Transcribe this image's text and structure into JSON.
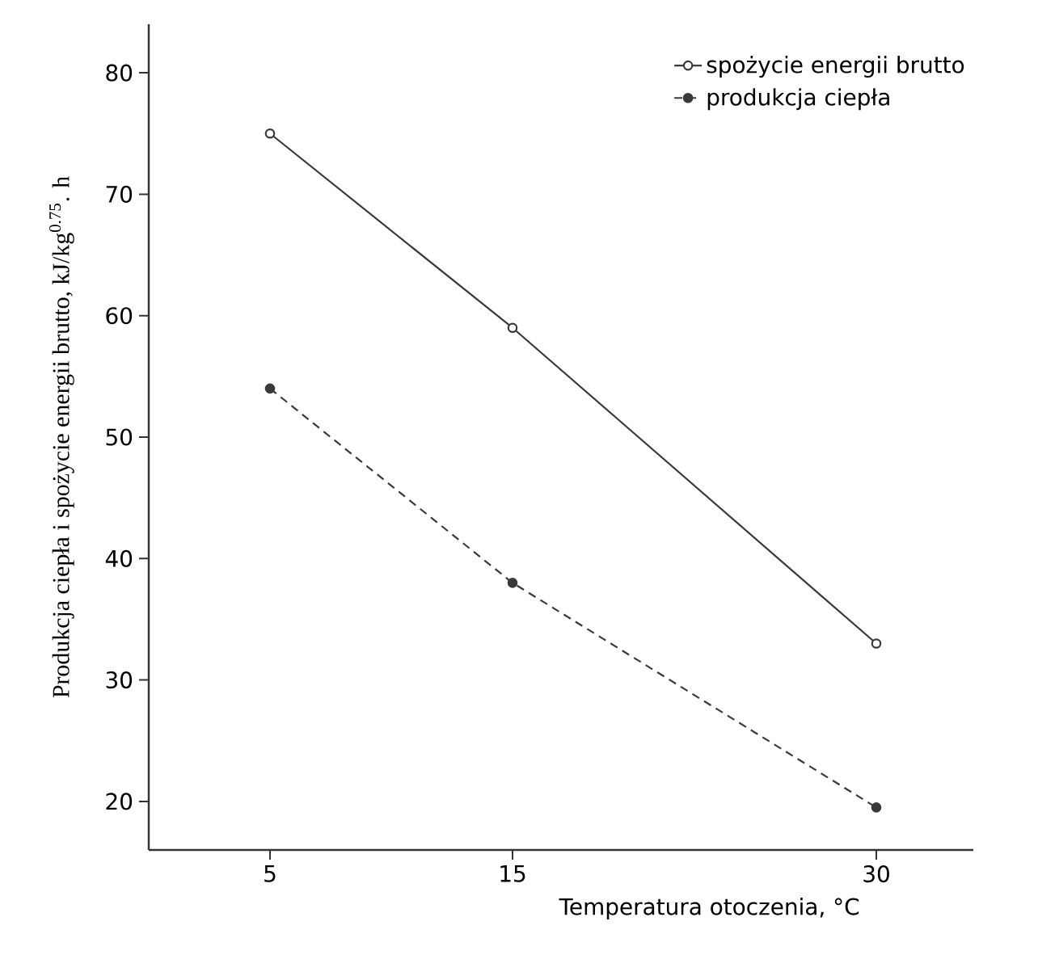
{
  "chart_data": {
    "type": "line",
    "xlabel": "Temperatura otoczenia, °C",
    "ylabel": "Produkcja ciepła i spożycie energii brutto, kJ/kg$^{0.75}$. h",
    "x": [
      5,
      15,
      30
    ],
    "series": [
      {
        "name": "spożycie energii brutto",
        "color": "#3a3a3a",
        "values": [
          75,
          59,
          33
        ],
        "line_style": "solid",
        "marker": "circle"
      },
      {
        "name": "produkcja ciepła",
        "color": "#3a3a3a",
        "values": [
          54,
          38,
          19.5
        ],
        "line_style": "dashed",
        "marker": "circle"
      }
    ],
    "xlim": [
      0,
      34
    ],
    "ylim": [
      16,
      84
    ],
    "xticks": [
      5,
      15,
      30
    ],
    "yticks": [
      20,
      30,
      40,
      50,
      60,
      70,
      80
    ],
    "grid": false,
    "legend": "top right"
  }
}
